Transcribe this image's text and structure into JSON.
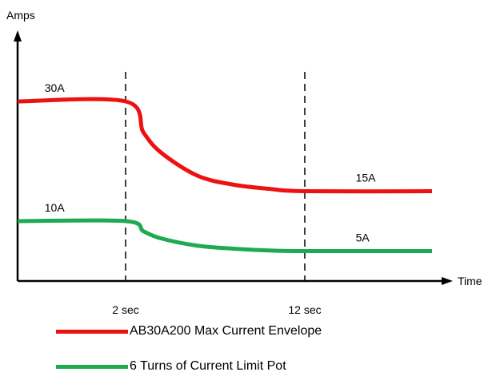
{
  "chart_data": {
    "type": "line",
    "xlabel": "Time",
    "ylabel": "Amps",
    "x_ticks": [
      {
        "value": 2,
        "label": "2 sec"
      },
      {
        "value": 12,
        "label": "12 sec"
      }
    ],
    "series": [
      {
        "name": "AB30A200 Max Current Envelope",
        "color": "#ee1111",
        "points": [
          [
            0,
            30
          ],
          [
            2,
            30
          ],
          [
            3,
            24.8
          ],
          [
            4,
            21.4
          ],
          [
            6,
            17.6
          ],
          [
            8,
            16.1
          ],
          [
            10,
            15.4
          ],
          [
            12,
            15
          ],
          [
            16,
            15
          ]
        ],
        "labels": [
          {
            "text": "30A",
            "x": 0.5,
            "y": 30
          },
          {
            "text": "15A",
            "x": 13.6,
            "y": 15
          }
        ]
      },
      {
        "name": "6 Turns of Current Limit Pot",
        "color": "#1faa50",
        "points": [
          [
            0,
            10
          ],
          [
            2,
            10
          ],
          [
            3,
            8.3
          ],
          [
            4,
            7.1
          ],
          [
            6,
            5.9
          ],
          [
            8,
            5.4
          ],
          [
            10,
            5.1
          ],
          [
            12,
            5
          ],
          [
            16,
            5
          ]
        ],
        "labels": [
          {
            "text": "10A",
            "x": 0.5,
            "y": 10
          },
          {
            "text": "5A",
            "x": 13.6,
            "y": 5
          }
        ]
      }
    ],
    "legend_position": "bottom-left"
  }
}
